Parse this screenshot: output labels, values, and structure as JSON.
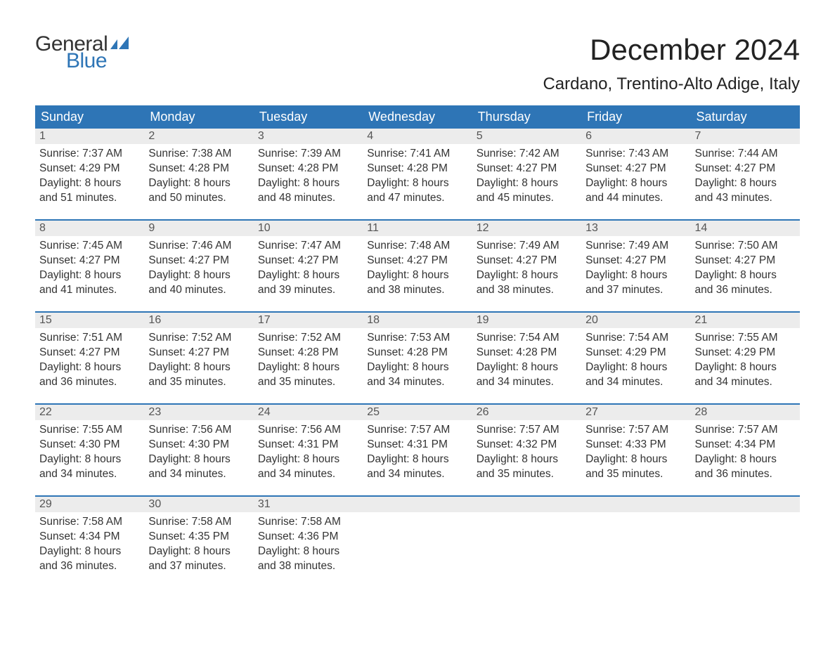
{
  "brand": {
    "word1": "General",
    "word2": "Blue",
    "color_accent": "#2e75b6"
  },
  "title": "December 2024",
  "location": "Cardano, Trentino-Alto Adige, Italy",
  "colors": {
    "header_bg": "#2e75b6",
    "header_text": "#ffffff",
    "daynum_bg": "#ececec",
    "daynum_text": "#555555",
    "body_text": "#333333",
    "page_bg": "#ffffff",
    "row_separator": "#2e75b6"
  },
  "typography": {
    "title_fontsize": 42,
    "location_fontsize": 24,
    "header_fontsize": 18,
    "daynum_fontsize": 16,
    "body_fontsize": 15.5,
    "font_family": "Arial"
  },
  "day_headers": [
    "Sunday",
    "Monday",
    "Tuesday",
    "Wednesday",
    "Thursday",
    "Friday",
    "Saturday"
  ],
  "weeks": [
    [
      {
        "n": "1",
        "sunrise": "Sunrise: 7:37 AM",
        "sunset": "Sunset: 4:29 PM",
        "d1": "Daylight: 8 hours",
        "d2": "and 51 minutes."
      },
      {
        "n": "2",
        "sunrise": "Sunrise: 7:38 AM",
        "sunset": "Sunset: 4:28 PM",
        "d1": "Daylight: 8 hours",
        "d2": "and 50 minutes."
      },
      {
        "n": "3",
        "sunrise": "Sunrise: 7:39 AM",
        "sunset": "Sunset: 4:28 PM",
        "d1": "Daylight: 8 hours",
        "d2": "and 48 minutes."
      },
      {
        "n": "4",
        "sunrise": "Sunrise: 7:41 AM",
        "sunset": "Sunset: 4:28 PM",
        "d1": "Daylight: 8 hours",
        "d2": "and 47 minutes."
      },
      {
        "n": "5",
        "sunrise": "Sunrise: 7:42 AM",
        "sunset": "Sunset: 4:27 PM",
        "d1": "Daylight: 8 hours",
        "d2": "and 45 minutes."
      },
      {
        "n": "6",
        "sunrise": "Sunrise: 7:43 AM",
        "sunset": "Sunset: 4:27 PM",
        "d1": "Daylight: 8 hours",
        "d2": "and 44 minutes."
      },
      {
        "n": "7",
        "sunrise": "Sunrise: 7:44 AM",
        "sunset": "Sunset: 4:27 PM",
        "d1": "Daylight: 8 hours",
        "d2": "and 43 minutes."
      }
    ],
    [
      {
        "n": "8",
        "sunrise": "Sunrise: 7:45 AM",
        "sunset": "Sunset: 4:27 PM",
        "d1": "Daylight: 8 hours",
        "d2": "and 41 minutes."
      },
      {
        "n": "9",
        "sunrise": "Sunrise: 7:46 AM",
        "sunset": "Sunset: 4:27 PM",
        "d1": "Daylight: 8 hours",
        "d2": "and 40 minutes."
      },
      {
        "n": "10",
        "sunrise": "Sunrise: 7:47 AM",
        "sunset": "Sunset: 4:27 PM",
        "d1": "Daylight: 8 hours",
        "d2": "and 39 minutes."
      },
      {
        "n": "11",
        "sunrise": "Sunrise: 7:48 AM",
        "sunset": "Sunset: 4:27 PM",
        "d1": "Daylight: 8 hours",
        "d2": "and 38 minutes."
      },
      {
        "n": "12",
        "sunrise": "Sunrise: 7:49 AM",
        "sunset": "Sunset: 4:27 PM",
        "d1": "Daylight: 8 hours",
        "d2": "and 38 minutes."
      },
      {
        "n": "13",
        "sunrise": "Sunrise: 7:49 AM",
        "sunset": "Sunset: 4:27 PM",
        "d1": "Daylight: 8 hours",
        "d2": "and 37 minutes."
      },
      {
        "n": "14",
        "sunrise": "Sunrise: 7:50 AM",
        "sunset": "Sunset: 4:27 PM",
        "d1": "Daylight: 8 hours",
        "d2": "and 36 minutes."
      }
    ],
    [
      {
        "n": "15",
        "sunrise": "Sunrise: 7:51 AM",
        "sunset": "Sunset: 4:27 PM",
        "d1": "Daylight: 8 hours",
        "d2": "and 36 minutes."
      },
      {
        "n": "16",
        "sunrise": "Sunrise: 7:52 AM",
        "sunset": "Sunset: 4:27 PM",
        "d1": "Daylight: 8 hours",
        "d2": "and 35 minutes."
      },
      {
        "n": "17",
        "sunrise": "Sunrise: 7:52 AM",
        "sunset": "Sunset: 4:28 PM",
        "d1": "Daylight: 8 hours",
        "d2": "and 35 minutes."
      },
      {
        "n": "18",
        "sunrise": "Sunrise: 7:53 AM",
        "sunset": "Sunset: 4:28 PM",
        "d1": "Daylight: 8 hours",
        "d2": "and 34 minutes."
      },
      {
        "n": "19",
        "sunrise": "Sunrise: 7:54 AM",
        "sunset": "Sunset: 4:28 PM",
        "d1": "Daylight: 8 hours",
        "d2": "and 34 minutes."
      },
      {
        "n": "20",
        "sunrise": "Sunrise: 7:54 AM",
        "sunset": "Sunset: 4:29 PM",
        "d1": "Daylight: 8 hours",
        "d2": "and 34 minutes."
      },
      {
        "n": "21",
        "sunrise": "Sunrise: 7:55 AM",
        "sunset": "Sunset: 4:29 PM",
        "d1": "Daylight: 8 hours",
        "d2": "and 34 minutes."
      }
    ],
    [
      {
        "n": "22",
        "sunrise": "Sunrise: 7:55 AM",
        "sunset": "Sunset: 4:30 PM",
        "d1": "Daylight: 8 hours",
        "d2": "and 34 minutes."
      },
      {
        "n": "23",
        "sunrise": "Sunrise: 7:56 AM",
        "sunset": "Sunset: 4:30 PM",
        "d1": "Daylight: 8 hours",
        "d2": "and 34 minutes."
      },
      {
        "n": "24",
        "sunrise": "Sunrise: 7:56 AM",
        "sunset": "Sunset: 4:31 PM",
        "d1": "Daylight: 8 hours",
        "d2": "and 34 minutes."
      },
      {
        "n": "25",
        "sunrise": "Sunrise: 7:57 AM",
        "sunset": "Sunset: 4:31 PM",
        "d1": "Daylight: 8 hours",
        "d2": "and 34 minutes."
      },
      {
        "n": "26",
        "sunrise": "Sunrise: 7:57 AM",
        "sunset": "Sunset: 4:32 PM",
        "d1": "Daylight: 8 hours",
        "d2": "and 35 minutes."
      },
      {
        "n": "27",
        "sunrise": "Sunrise: 7:57 AM",
        "sunset": "Sunset: 4:33 PM",
        "d1": "Daylight: 8 hours",
        "d2": "and 35 minutes."
      },
      {
        "n": "28",
        "sunrise": "Sunrise: 7:57 AM",
        "sunset": "Sunset: 4:34 PM",
        "d1": "Daylight: 8 hours",
        "d2": "and 36 minutes."
      }
    ],
    [
      {
        "n": "29",
        "sunrise": "Sunrise: 7:58 AM",
        "sunset": "Sunset: 4:34 PM",
        "d1": "Daylight: 8 hours",
        "d2": "and 36 minutes."
      },
      {
        "n": "30",
        "sunrise": "Sunrise: 7:58 AM",
        "sunset": "Sunset: 4:35 PM",
        "d1": "Daylight: 8 hours",
        "d2": "and 37 minutes."
      },
      {
        "n": "31",
        "sunrise": "Sunrise: 7:58 AM",
        "sunset": "Sunset: 4:36 PM",
        "d1": "Daylight: 8 hours",
        "d2": "and 38 minutes."
      },
      {
        "n": "",
        "sunrise": "",
        "sunset": "",
        "d1": "",
        "d2": ""
      },
      {
        "n": "",
        "sunrise": "",
        "sunset": "",
        "d1": "",
        "d2": ""
      },
      {
        "n": "",
        "sunrise": "",
        "sunset": "",
        "d1": "",
        "d2": ""
      },
      {
        "n": "",
        "sunrise": "",
        "sunset": "",
        "d1": "",
        "d2": ""
      }
    ]
  ]
}
